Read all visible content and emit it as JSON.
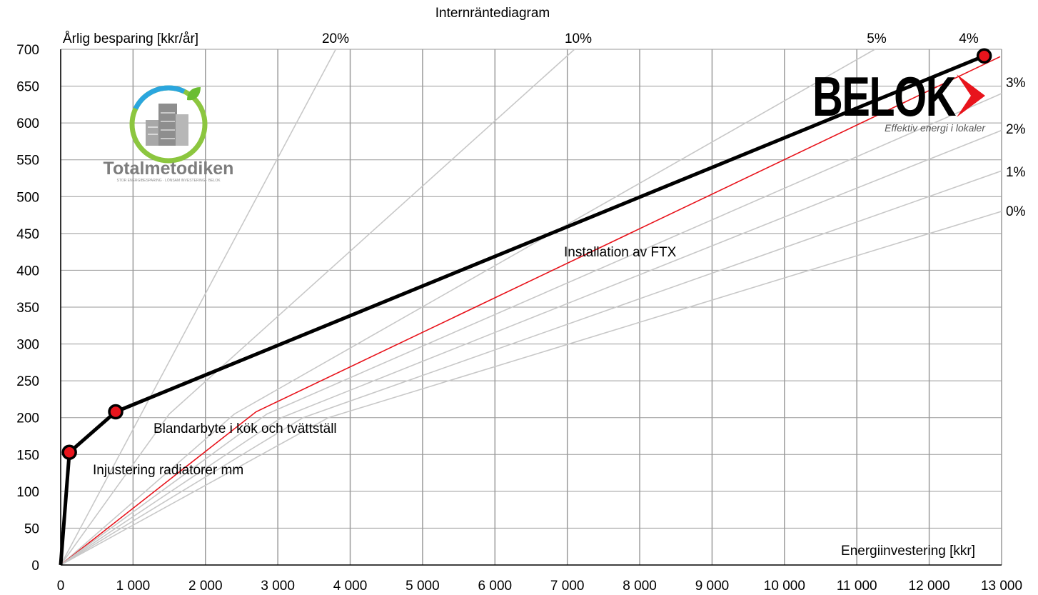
{
  "chart_data": {
    "type": "line",
    "title": "Internräntediagram",
    "ylabel": "Årlig besparing [kkr/år]",
    "xlabel": "Energiinvestering [kkr]",
    "xlim": [
      0,
      13000
    ],
    "ylim": [
      0,
      700
    ],
    "xticks": [
      0,
      1000,
      2000,
      3000,
      4000,
      5000,
      6000,
      7000,
      8000,
      9000,
      10000,
      11000,
      12000,
      13000
    ],
    "xtick_labels": [
      "0",
      "1 000",
      "2 000",
      "3 000",
      "4 000",
      "5 000",
      "6 000",
      "7 000",
      "8 000",
      "9 000",
      "10 000",
      "11 000",
      "12 000",
      "13 000"
    ],
    "yticks": [
      0,
      50,
      100,
      150,
      200,
      250,
      300,
      350,
      400,
      450,
      500,
      550,
      600,
      650,
      700
    ],
    "ytick_labels": [
      "0",
      "50",
      "100",
      "150",
      "200",
      "250",
      "300",
      "350",
      "400",
      "450",
      "500",
      "550",
      "600",
      "650",
      "700"
    ],
    "grid": true,
    "measures": [
      {
        "x": 0,
        "y": 0
      },
      {
        "x": 120,
        "y": 153,
        "label": "Injustering radiatorer mm"
      },
      {
        "x": 760,
        "y": 208,
        "label": "Blandarbyte i kök och tvättställ"
      },
      {
        "x": 12760,
        "y": 691,
        "label": "Installation av FTX"
      }
    ],
    "rate_curves": [
      {
        "label": "20%",
        "points": [
          [
            0,
            0
          ],
          [
            3800,
            700
          ]
        ]
      },
      {
        "label": "10%",
        "points": [
          [
            0,
            0
          ],
          [
            1500,
            205
          ],
          [
            7100,
            700
          ]
        ]
      },
      {
        "label": "5%",
        "points": [
          [
            0,
            0
          ],
          [
            2400,
            205
          ],
          [
            11250,
            700
          ]
        ]
      },
      {
        "label": "4%",
        "points": [
          [
            0,
            0
          ],
          [
            2700,
            208
          ],
          [
            12980,
            690
          ]
        ],
        "highlight": true
      },
      {
        "label": "3%",
        "points": [
          [
            0,
            0
          ],
          [
            2850,
            205
          ],
          [
            13000,
            640
          ]
        ]
      },
      {
        "label": "2%",
        "points": [
          [
            0,
            0
          ],
          [
            3050,
            200
          ],
          [
            13000,
            590
          ]
        ]
      },
      {
        "label": "1%",
        "points": [
          [
            0,
            0
          ],
          [
            3350,
            200
          ],
          [
            13000,
            535
          ]
        ]
      },
      {
        "label": "0%",
        "points": [
          [
            0,
            0
          ],
          [
            3700,
            200
          ],
          [
            13000,
            480
          ]
        ]
      }
    ],
    "colors": {
      "measure_line": "#000000",
      "marker_fill": "#e8141c",
      "marker_stroke": "#000000",
      "highlight_curve": "#e8141c",
      "rate_curve": "#c8c8c8",
      "grid": "#9a9a9a"
    }
  },
  "logos": {
    "left": {
      "name": "Totalmetodiken",
      "subtitle": "STOR ENERGIBESPARING · LÖNSAM INVESTERING · BELOK"
    },
    "right": {
      "name": "BELOK",
      "tagline": "Effektiv energi i lokaler"
    }
  }
}
